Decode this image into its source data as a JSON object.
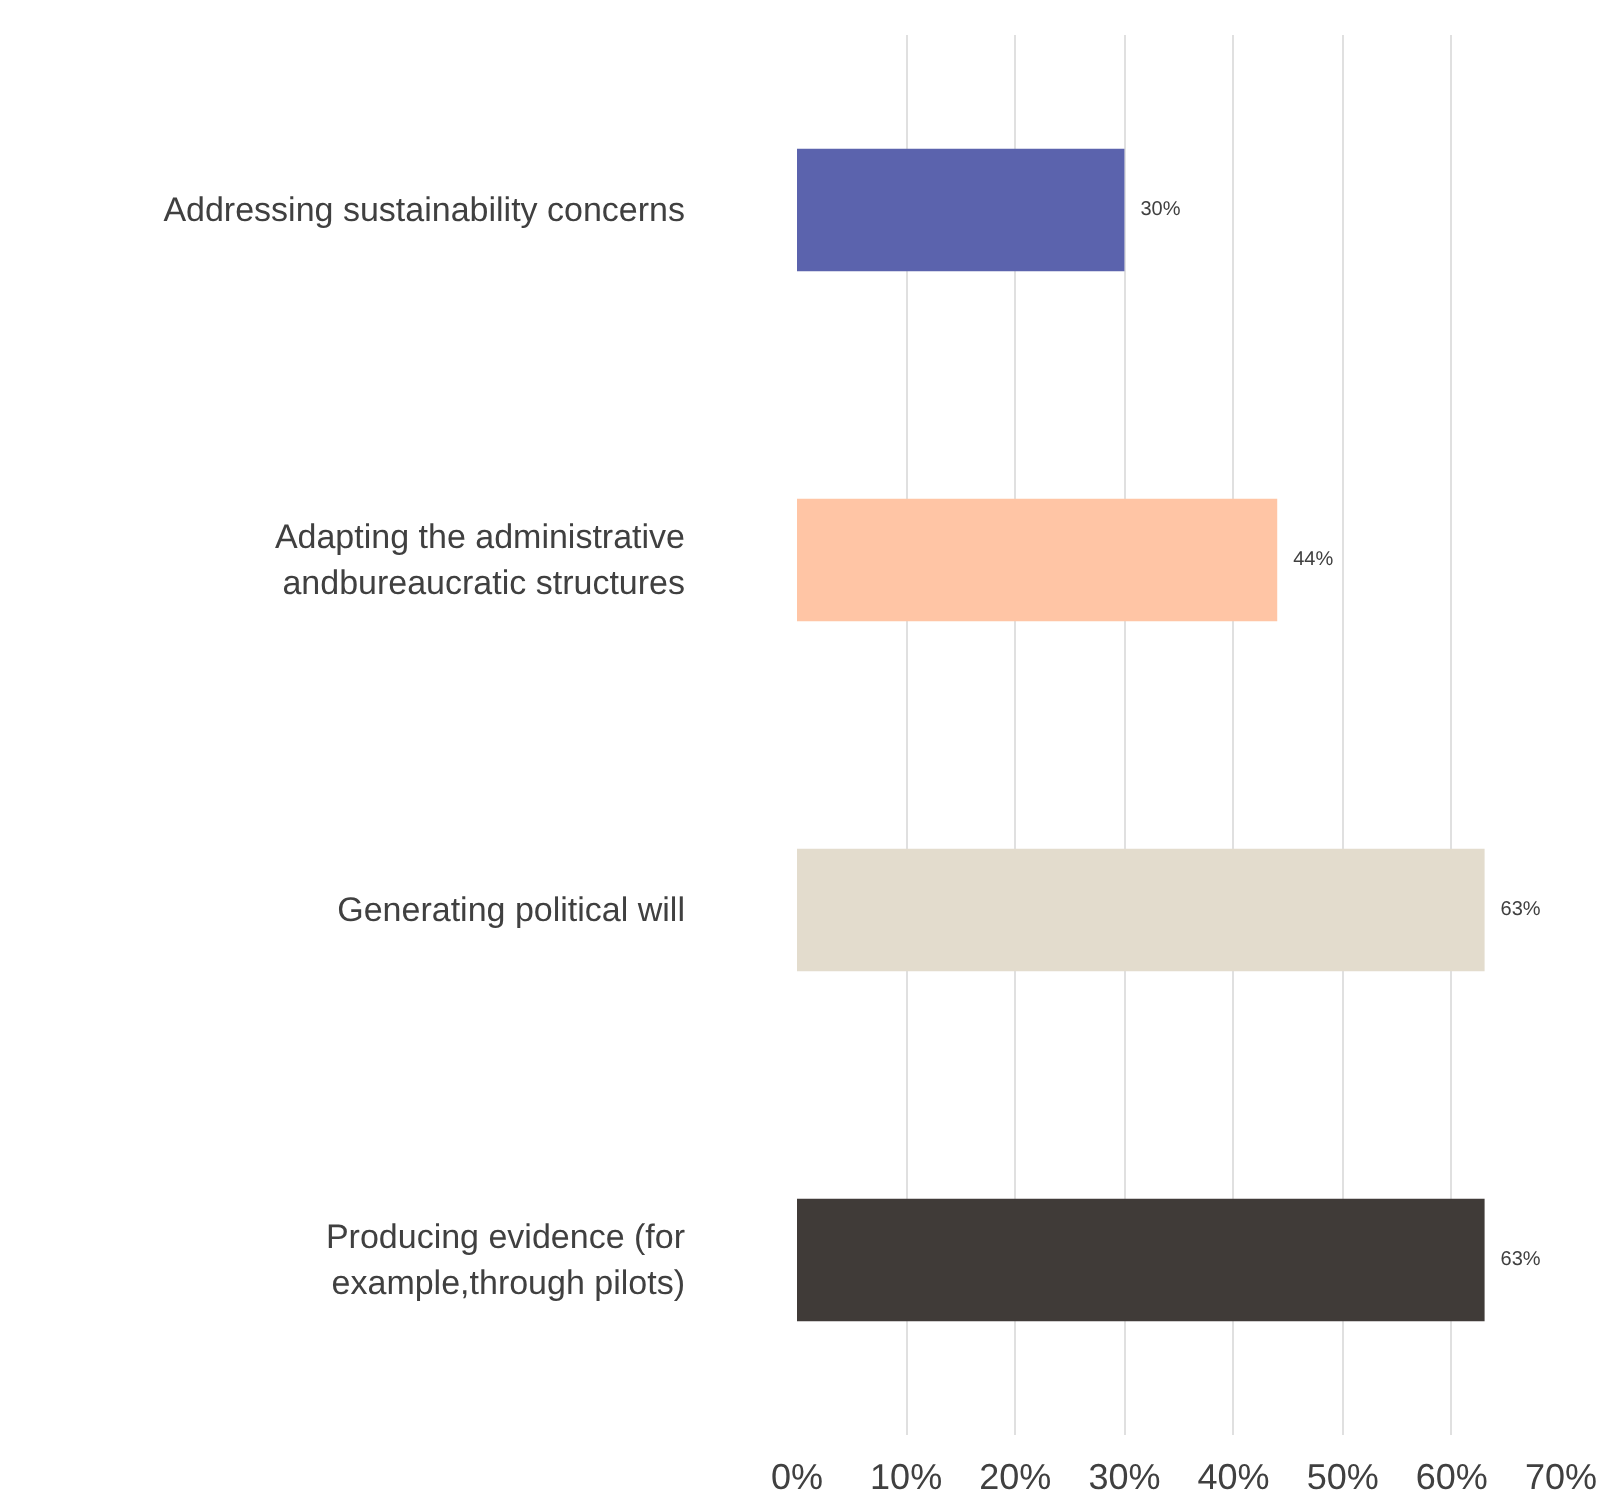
{
  "chart_data": {
    "type": "bar",
    "orientation": "horizontal",
    "categories": [
      "Addressing sustainability concerns",
      "Adapting the administrative andbureaucratic structures",
      "Generating political will",
      "Producing evidence (for example,through pilots)"
    ],
    "values": [
      30,
      44,
      63,
      63
    ],
    "colors": [
      "#5b63ad",
      "#ffc5a5",
      "#e3dccd",
      "#403b38"
    ],
    "value_labels": [
      "30%",
      "44%",
      "63%",
      "63%"
    ],
    "xlim": [
      0,
      70
    ],
    "xticks": [
      {
        "value": 0,
        "label": "0%"
      },
      {
        "value": 10,
        "label": "10%"
      },
      {
        "value": 20,
        "label": "20%"
      },
      {
        "value": 30,
        "label": "30%"
      },
      {
        "value": 40,
        "label": "40%"
      },
      {
        "value": 50,
        "label": "50%"
      },
      {
        "value": 60,
        "label": "60%"
      },
      {
        "value": 70,
        "label": "70%"
      }
    ],
    "grid": "x"
  }
}
